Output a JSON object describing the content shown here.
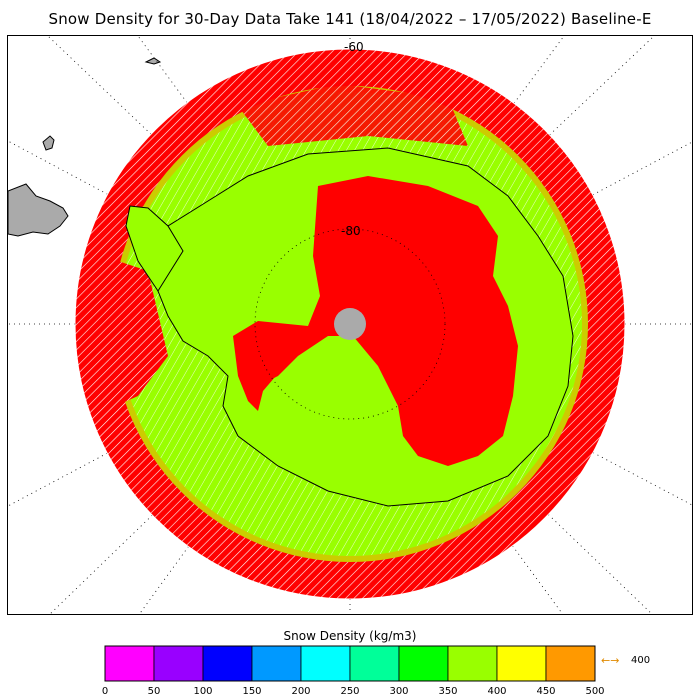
{
  "title": "Snow Density for 30-Day Data Take 141 (18/04/2022 – 17/05/2022) Baseline-E",
  "map": {
    "projection": "south-polar-stereographic",
    "latitude_labels": [
      "-60",
      "-80"
    ],
    "colors": {
      "ocean_high": "#ff0000",
      "ice_main": "#99ff00",
      "mixed": "#cccc00",
      "pole_hole": "#aaaaaa",
      "land": "#aaaaaa"
    }
  },
  "colorbar": {
    "title": "Snow Density (kg/m3)",
    "ticks": [
      "0",
      "50",
      "100",
      "150",
      "200",
      "250",
      "300",
      "350",
      "400",
      "450",
      "500"
    ],
    "colors": [
      "#ff00ff",
      "#9900ff",
      "#0000ff",
      "#0099ff",
      "#00ffff",
      "#00ff99",
      "#00ff00",
      "#99ff00",
      "#ffff00",
      "#ff9900"
    ],
    "overflow_label": "400",
    "overflow_arrow": "←→"
  }
}
